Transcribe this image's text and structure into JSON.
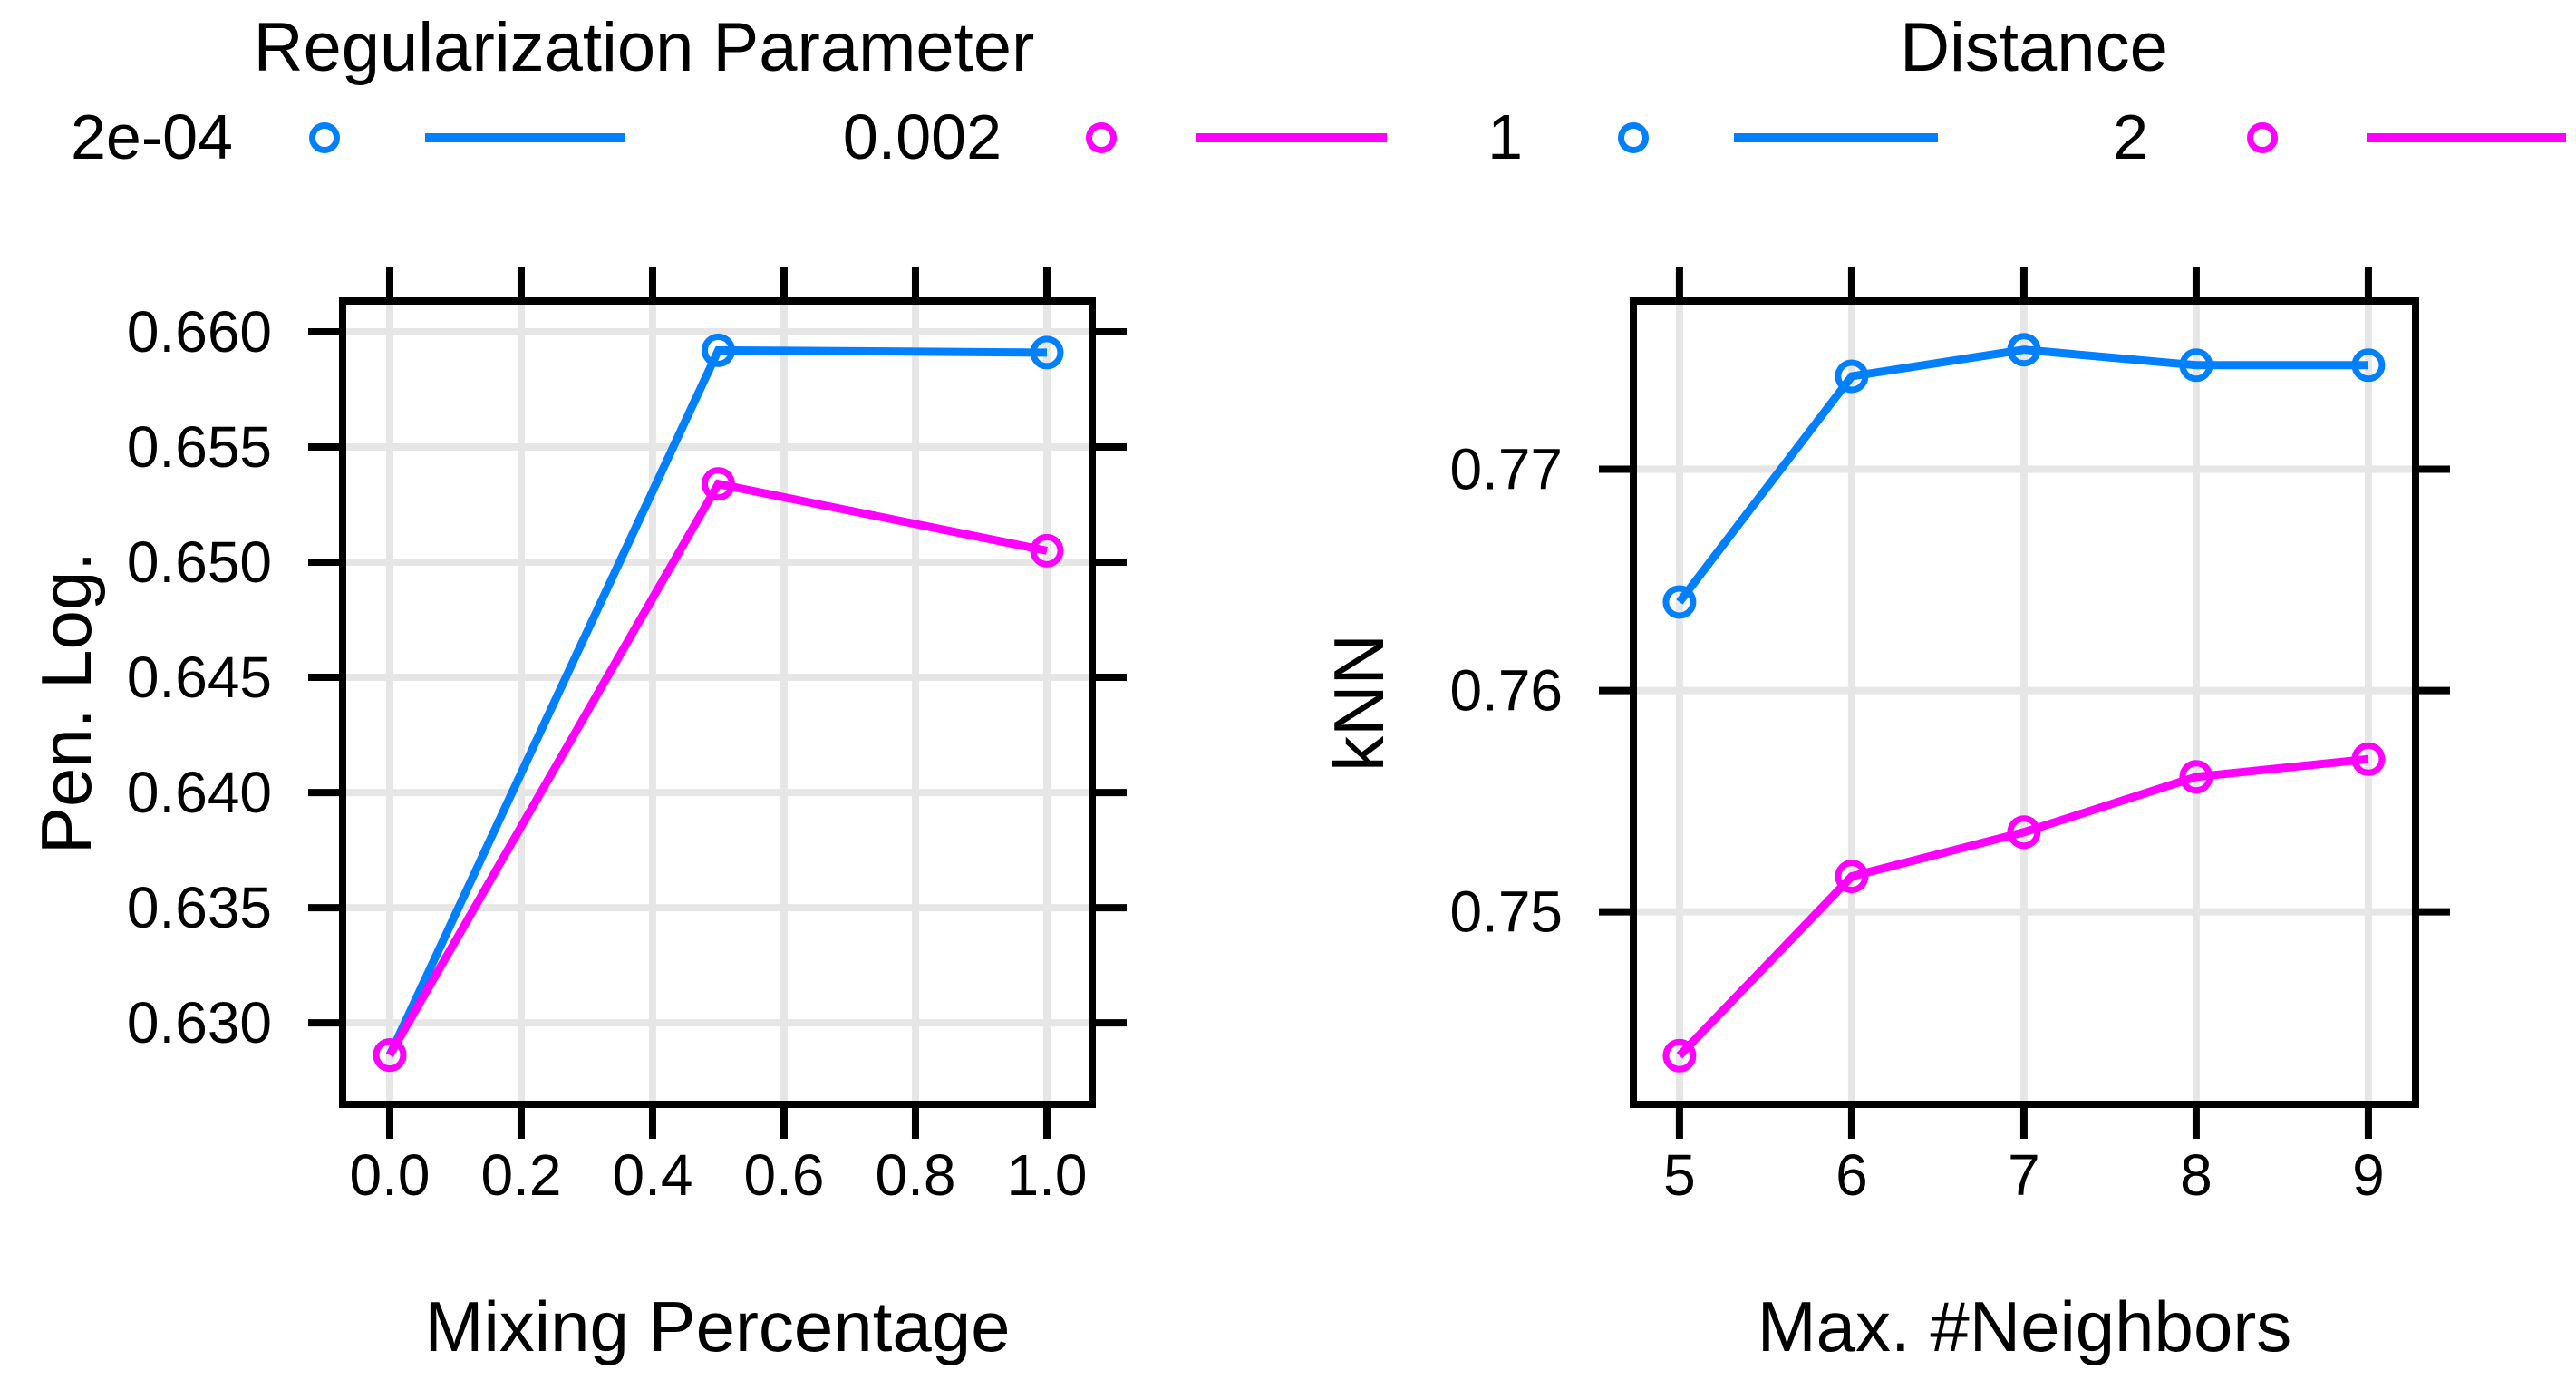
{
  "colors": {
    "series_blue": "#0080FF",
    "series_magenta": "#FF00FF",
    "grid": "#E6E6E6",
    "frame": "#000000",
    "text": "#000000",
    "background": "#FFFFFF"
  },
  "legends": [
    {
      "title": "Regularization Parameter",
      "entries": [
        {
          "label": "2e-04",
          "color": "#0080FF"
        },
        {
          "label": "0.002",
          "color": "#FF00FF"
        }
      ]
    },
    {
      "title": "Distance",
      "entries": [
        {
          "label": "1",
          "color": "#0080FF"
        },
        {
          "label": "2",
          "color": "#FF00FF"
        }
      ]
    }
  ],
  "chart_data": [
    {
      "type": "line",
      "title": "",
      "legend_title": "Regularization Parameter",
      "xlabel": "Mixing Percentage",
      "ylabel": "Pen. Log.",
      "x": [
        0.0,
        0.5,
        1.0
      ],
      "series": [
        {
          "name": "2e-04",
          "color": "#0080FF",
          "values": [
            0.6286,
            0.6592,
            0.6591
          ]
        },
        {
          "name": "0.002",
          "color": "#FF00FF",
          "values": [
            0.6286,
            0.6534,
            0.6505
          ]
        }
      ],
      "marker": "open-circle",
      "grid": true,
      "xticks": [
        0.0,
        0.2,
        0.4,
        0.6,
        0.8,
        1.0
      ],
      "xtick_labels": [
        "0.0",
        "0.2",
        "0.4",
        "0.6",
        "0.8",
        "1.0"
      ],
      "yticks": [
        0.63,
        0.635,
        0.64,
        0.645,
        0.65,
        0.655,
        0.66
      ],
      "ytick_labels": [
        "0.630",
        "0.635",
        "0.640",
        "0.645",
        "0.650",
        "0.655",
        "0.660"
      ],
      "xlim": [
        -0.0717,
        1.069
      ],
      "ylim": [
        0.62646,
        0.66134
      ]
    },
    {
      "type": "line",
      "title": "",
      "legend_title": "Distance",
      "xlabel": "Max. #Neighbors",
      "ylabel": "kNN",
      "x": [
        5,
        6,
        7,
        8,
        9
      ],
      "series": [
        {
          "name": "1",
          "color": "#0080FF",
          "values": [
            0.764,
            0.7742,
            0.7754,
            0.7747,
            0.7747
          ]
        },
        {
          "name": "2",
          "color": "#FF00FF",
          "values": [
            0.7435,
            0.7516,
            0.7536,
            0.7561,
            0.7569
          ]
        }
      ],
      "marker": "open-circle",
      "grid": true,
      "xticks": [
        5,
        6,
        7,
        8,
        9
      ],
      "xtick_labels": [
        "5",
        "6",
        "7",
        "8",
        "9"
      ],
      "yticks": [
        0.75,
        0.76,
        0.77
      ],
      "ytick_labels": [
        "0.75",
        "0.76",
        "0.77"
      ],
      "xlim": [
        4.732,
        9.274
      ],
      "ylim": [
        0.7413,
        0.7776
      ]
    }
  ]
}
